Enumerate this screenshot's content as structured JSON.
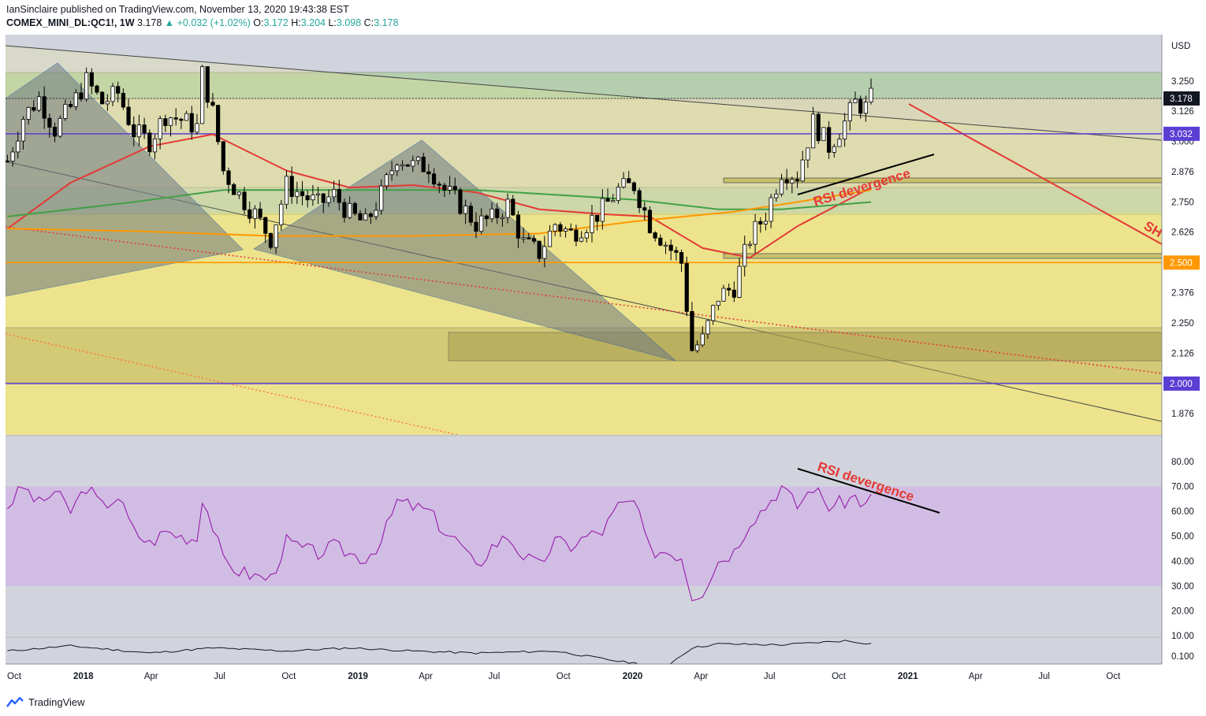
{
  "header": {
    "publisher": "IanSinclaire published on TradingView.com, November 13, 2020 19:43:38 EST",
    "symbol": "COMEX_MINI_DL:QC1!, 1W",
    "last": "3.178",
    "change": "+0.032 (+1.02%)",
    "o_label": "O:",
    "o": "3.172",
    "h_label": "H:",
    "h": "3.204",
    "l_label": "L:",
    "l": "3.098",
    "c_label": "C:",
    "c": "3.178"
  },
  "footer": {
    "brand": "TradingView"
  },
  "colors": {
    "up": "#ffffff",
    "down": "#000000",
    "ema_red": "#e53935",
    "ema_orange": "#ff9800",
    "ema_green": "#43a047",
    "support": "#5b3fd4",
    "annotation": "#e53935",
    "rsi": "#9c27b0"
  },
  "chart_data": [
    {
      "type": "candlestick",
      "currency": "USD",
      "ylim": [
        1.77,
        3.39
      ],
      "y_ticks": [
        "3.250",
        "3.126",
        "3.000",
        "2.876",
        "2.750",
        "2.626",
        "2.376",
        "2.250",
        "2.126",
        "1.876"
      ],
      "highlighted_levels": [
        {
          "label": "3.178",
          "value": 3.178,
          "color": "#131722"
        },
        {
          "label": "3.032",
          "value": 3.032,
          "color": "#5b3fd4"
        },
        {
          "label": "2.500",
          "value": 2.5,
          "color": "#ff9800"
        },
        {
          "label": "2.000",
          "value": 2.0,
          "color": "#5b3fd4"
        }
      ],
      "x_ticks": [
        {
          "label": "Oct",
          "date": "2017-10-01"
        },
        {
          "label": "2018",
          "date": "2018-01-01",
          "bold": true
        },
        {
          "label": "Apr",
          "date": "2018-04-01"
        },
        {
          "label": "Jul",
          "date": "2018-07-01"
        },
        {
          "label": "Oct",
          "date": "2018-10-01"
        },
        {
          "label": "2019",
          "date": "2019-01-01",
          "bold": true
        },
        {
          "label": "Apr",
          "date": "2019-04-01"
        },
        {
          "label": "Jul",
          "date": "2019-07-01"
        },
        {
          "label": "Oct",
          "date": "2019-10-01"
        },
        {
          "label": "2020",
          "date": "2020-01-01",
          "bold": true
        },
        {
          "label": "Apr",
          "date": "2020-04-01"
        },
        {
          "label": "Jul",
          "date": "2020-07-01"
        },
        {
          "label": "Oct",
          "date": "2020-10-01"
        },
        {
          "label": "2021",
          "date": "2021-01-01",
          "bold": true
        },
        {
          "label": "Apr",
          "date": "2021-04-01"
        },
        {
          "label": "Jul",
          "date": "2021-07-01"
        },
        {
          "label": "Oct",
          "date": "2021-10-01"
        }
      ],
      "close_path": [
        [
          "2017-09-22",
          2.92
        ],
        [
          "2017-10-13",
          3.1
        ],
        [
          "2017-11-03",
          3.18
        ],
        [
          "2017-11-24",
          3.05
        ],
        [
          "2017-12-15",
          3.14
        ],
        [
          "2018-01-05",
          3.25
        ],
        [
          "2018-01-26",
          3.16
        ],
        [
          "2018-02-16",
          3.2
        ],
        [
          "2018-03-09",
          3.04
        ],
        [
          "2018-03-30",
          3.0
        ],
        [
          "2018-04-20",
          3.11
        ],
        [
          "2018-05-11",
          3.09
        ],
        [
          "2018-06-01",
          3.06
        ],
        [
          "2018-06-08",
          3.28
        ],
        [
          "2018-06-22",
          3.12
        ],
        [
          "2018-07-06",
          2.88
        ],
        [
          "2018-07-27",
          2.78
        ],
        [
          "2018-08-17",
          2.7
        ],
        [
          "2018-09-07",
          2.6
        ],
        [
          "2018-09-28",
          2.82
        ],
        [
          "2018-10-19",
          2.78
        ],
        [
          "2018-11-09",
          2.74
        ],
        [
          "2018-11-30",
          2.78
        ],
        [
          "2018-12-21",
          2.7
        ],
        [
          "2019-01-11",
          2.66
        ],
        [
          "2019-02-01",
          2.78
        ],
        [
          "2019-02-22",
          2.94
        ],
        [
          "2019-03-15",
          2.9
        ],
        [
          "2019-04-05",
          2.9
        ],
        [
          "2019-04-26",
          2.8
        ],
        [
          "2019-05-17",
          2.74
        ],
        [
          "2019-06-07",
          2.66
        ],
        [
          "2019-06-28",
          2.68
        ],
        [
          "2019-07-19",
          2.74
        ],
        [
          "2019-08-09",
          2.58
        ],
        [
          "2019-08-30",
          2.54
        ],
        [
          "2019-09-20",
          2.66
        ],
        [
          "2019-10-11",
          2.62
        ],
        [
          "2019-11-01",
          2.66
        ],
        [
          "2019-11-22",
          2.72
        ],
        [
          "2019-12-13",
          2.8
        ],
        [
          "2020-01-03",
          2.82
        ],
        [
          "2020-01-24",
          2.66
        ],
        [
          "2020-02-14",
          2.58
        ],
        [
          "2020-03-06",
          2.5
        ],
        [
          "2020-03-20",
          2.14
        ],
        [
          "2020-04-03",
          2.18
        ],
        [
          "2020-04-24",
          2.36
        ],
        [
          "2020-05-15",
          2.4
        ],
        [
          "2020-06-05",
          2.6
        ],
        [
          "2020-06-26",
          2.7
        ],
        [
          "2020-07-17",
          2.88
        ],
        [
          "2020-08-07",
          2.86
        ],
        [
          "2020-08-28",
          3.08
        ],
        [
          "2020-09-18",
          2.98
        ],
        [
          "2020-10-09",
          3.08
        ],
        [
          "2020-10-23",
          3.16
        ],
        [
          "2020-11-06",
          3.14
        ],
        [
          "2020-11-13",
          3.178
        ]
      ],
      "series": [
        {
          "name": "EMA (red)",
          "color": "#e53935",
          "points": [
            [
              "2017-09-22",
              2.64
            ],
            [
              "2017-12-15",
              2.83
            ],
            [
              "2018-03-30",
              2.98
            ],
            [
              "2018-06-22",
              3.03
            ],
            [
              "2018-09-28",
              2.88
            ],
            [
              "2018-12-21",
              2.81
            ],
            [
              "2019-03-15",
              2.82
            ],
            [
              "2019-06-07",
              2.79
            ],
            [
              "2019-08-30",
              2.72
            ],
            [
              "2019-11-22",
              2.7
            ],
            [
              "2020-01-24",
              2.69
            ],
            [
              "2020-04-03",
              2.56
            ],
            [
              "2020-06-05",
              2.52
            ],
            [
              "2020-08-07",
              2.65
            ],
            [
              "2020-11-13",
              2.81
            ]
          ]
        },
        {
          "name": "EMA (green)",
          "color": "#43a047",
          "points": [
            [
              "2017-09-22",
              2.69
            ],
            [
              "2018-03-09",
              2.75
            ],
            [
              "2018-07-06",
              2.8
            ],
            [
              "2018-12-21",
              2.8
            ],
            [
              "2019-06-07",
              2.8
            ],
            [
              "2019-09-20",
              2.78
            ],
            [
              "2020-01-03",
              2.76
            ],
            [
              "2020-04-24",
              2.72
            ],
            [
              "2020-07-17",
              2.72
            ],
            [
              "2020-11-13",
              2.75
            ]
          ]
        },
        {
          "name": "EMA (orange)",
          "color": "#ff9800",
          "points": [
            [
              "2017-09-22",
              2.64
            ],
            [
              "2018-03-09",
              2.63
            ],
            [
              "2018-09-07",
              2.61
            ],
            [
              "2019-03-15",
              2.61
            ],
            [
              "2019-08-30",
              2.62
            ],
            [
              "2020-01-03",
              2.67
            ],
            [
              "2020-05-15",
              2.71
            ],
            [
              "2020-08-07",
              2.75
            ],
            [
              "2020-11-13",
              2.8
            ]
          ]
        }
      ],
      "annotations": [
        {
          "text": "RSI devergence",
          "color": "#e53935"
        },
        {
          "text": "SH",
          "color": "#e53935"
        }
      ]
    },
    {
      "type": "line",
      "name": "RSI",
      "ylim": [
        10,
        90
      ],
      "y_ticks": [
        "80.00",
        "70.00",
        "60.00",
        "50.00",
        "40.00",
        "30.00",
        "20.00",
        "10.00"
      ],
      "band": [
        30,
        70
      ],
      "color": "#9c27b0",
      "points": [
        [
          "2017-09-22",
          62
        ],
        [
          "2017-10-13",
          70
        ],
        [
          "2017-11-03",
          63
        ],
        [
          "2017-11-24",
          68
        ],
        [
          "2017-12-15",
          60
        ],
        [
          "2018-01-05",
          70
        ],
        [
          "2018-01-26",
          62
        ],
        [
          "2018-02-16",
          66
        ],
        [
          "2018-03-09",
          52
        ],
        [
          "2018-03-30",
          47
        ],
        [
          "2018-04-20",
          52
        ],
        [
          "2018-05-11",
          50
        ],
        [
          "2018-06-01",
          49
        ],
        [
          "2018-06-08",
          66
        ],
        [
          "2018-06-22",
          54
        ],
        [
          "2018-07-06",
          40
        ],
        [
          "2018-07-27",
          36
        ],
        [
          "2018-08-17",
          34
        ],
        [
          "2018-09-07",
          33
        ],
        [
          "2018-09-28",
          48
        ],
        [
          "2018-10-19",
          45
        ],
        [
          "2018-11-09",
          43
        ],
        [
          "2018-11-30",
          46
        ],
        [
          "2018-12-21",
          43
        ],
        [
          "2019-01-11",
          41
        ],
        [
          "2019-02-01",
          48
        ],
        [
          "2019-02-22",
          64
        ],
        [
          "2019-03-15",
          62
        ],
        [
          "2019-04-05",
          60
        ],
        [
          "2019-04-26",
          52
        ],
        [
          "2019-05-17",
          47
        ],
        [
          "2019-06-07",
          37
        ],
        [
          "2019-06-28",
          46
        ],
        [
          "2019-07-19",
          50
        ],
        [
          "2019-08-09",
          42
        ],
        [
          "2019-08-30",
          38
        ],
        [
          "2019-09-20",
          48
        ],
        [
          "2019-10-11",
          46
        ],
        [
          "2019-11-01",
          50
        ],
        [
          "2019-11-22",
          52
        ],
        [
          "2019-12-13",
          62
        ],
        [
          "2020-01-03",
          64
        ],
        [
          "2020-01-24",
          44
        ],
        [
          "2020-02-14",
          44
        ],
        [
          "2020-03-06",
          42
        ],
        [
          "2020-03-20",
          26
        ],
        [
          "2020-04-03",
          28
        ],
        [
          "2020-04-24",
          40
        ],
        [
          "2020-05-15",
          44
        ],
        [
          "2020-06-05",
          56
        ],
        [
          "2020-06-26",
          62
        ],
        [
          "2020-07-17",
          70
        ],
        [
          "2020-08-07",
          62
        ],
        [
          "2020-08-28",
          70
        ],
        [
          "2020-09-18",
          62
        ],
        [
          "2020-10-09",
          64
        ],
        [
          "2020-10-23",
          66
        ],
        [
          "2020-11-06",
          62
        ],
        [
          "2020-11-13",
          66
        ]
      ],
      "annotations": [
        {
          "text": "RSI devergence",
          "color": "#e53935"
        }
      ]
    },
    {
      "type": "line",
      "ylim": [
        0.05,
        0.125
      ],
      "y_ticks": [
        "0.100"
      ],
      "color": "#131722",
      "points": [
        [
          "2017-09-22",
          0.105
        ],
        [
          "2017-12-15",
          0.11
        ],
        [
          "2018-03-30",
          0.103
        ],
        [
          "2018-06-22",
          0.108
        ],
        [
          "2018-09-28",
          0.105
        ],
        [
          "2018-12-21",
          0.108
        ],
        [
          "2019-03-15",
          0.105
        ],
        [
          "2019-06-07",
          0.103
        ],
        [
          "2019-09-20",
          0.105
        ],
        [
          "2019-12-13",
          0.095
        ],
        [
          "2020-02-14",
          0.09
        ],
        [
          "2020-03-20",
          0.108
        ],
        [
          "2020-04-24",
          0.112
        ],
        [
          "2020-07-17",
          0.111
        ],
        [
          "2020-10-09",
          0.115
        ],
        [
          "2020-11-13",
          0.112
        ]
      ]
    }
  ]
}
